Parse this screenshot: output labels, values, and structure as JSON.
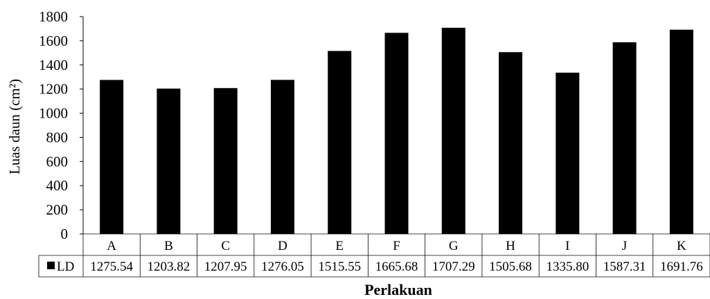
{
  "chart_data": {
    "type": "bar",
    "title": "",
    "xlabel": "Perlakuan",
    "ylabel": "Luas daun (cm²)",
    "ylim": [
      0,
      1800
    ],
    "y_ticks": [
      0,
      200,
      400,
      600,
      800,
      1000,
      1200,
      1400,
      1600,
      1800
    ],
    "grid": false,
    "legend": "data-table-left",
    "categories": [
      "A",
      "B",
      "C",
      "D",
      "E",
      "F",
      "G",
      "H",
      "I",
      "J",
      "K"
    ],
    "series": [
      {
        "name": "LD",
        "color": "#000000",
        "values": [
          1275.54,
          1203.82,
          1207.95,
          1276.05,
          1515.55,
          1665.68,
          1707.29,
          1505.68,
          1335.8,
          1587.31,
          1691.76
        ],
        "value_labels": [
          "1275.54",
          "1203.82",
          "1207.95",
          "1276.05",
          "1515.55",
          "1665.68",
          "1707.29",
          "1505.68",
          "1335.80",
          "1587.31",
          "1691.76"
        ]
      }
    ]
  }
}
